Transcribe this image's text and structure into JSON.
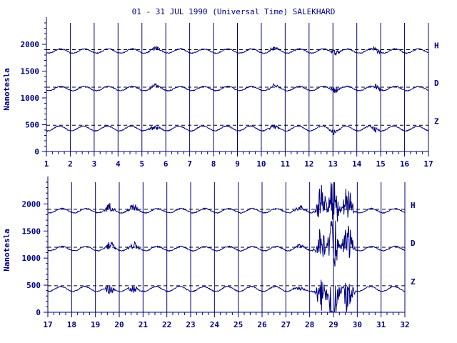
{
  "chart_data": {
    "type": "line",
    "title": "01 - 31 JUL 1990 (Universal Time) SALEKHARD",
    "ylabel": "Nanotesla",
    "ylim": [
      0,
      2400
    ],
    "yticks": [
      0,
      500,
      1000,
      1500,
      2000
    ],
    "baseline_color": "#000000",
    "line_color": "#000080",
    "components": [
      {
        "name": "H",
        "baseline": 1900
      },
      {
        "name": "D",
        "baseline": 1200
      },
      {
        "name": "Z",
        "baseline": 490
      }
    ],
    "panels": [
      {
        "xlim": [
          1,
          17
        ],
        "xticks": [
          "1",
          "2",
          "3",
          "4",
          "5",
          "6",
          "7",
          "8",
          "9",
          "10",
          "11",
          "12",
          "13",
          "14",
          "15",
          "16",
          "17"
        ],
        "disturbances": [
          {
            "day": 5.55,
            "amp": 0.35
          },
          {
            "day": 10.5,
            "amp": 0.3
          },
          {
            "day": 13.1,
            "amp": 0.4
          },
          {
            "day": 14.8,
            "amp": 0.4
          }
        ]
      },
      {
        "xlim": [
          17,
          32
        ],
        "xticks": [
          "17",
          "18",
          "19",
          "20",
          "21",
          "22",
          "23",
          "24",
          "25",
          "26",
          "27",
          "28",
          "29",
          "30",
          "31",
          "32"
        ],
        "disturbances": [
          {
            "day": 19.6,
            "amp": 0.6
          },
          {
            "day": 20.6,
            "amp": 0.5
          },
          {
            "day": 27.6,
            "amp": 0.3
          },
          {
            "day": 28.5,
            "amp": 2.5
          },
          {
            "day": 29.0,
            "amp": 4.0
          },
          {
            "day": 29.6,
            "amp": 2.5
          }
        ]
      }
    ]
  }
}
